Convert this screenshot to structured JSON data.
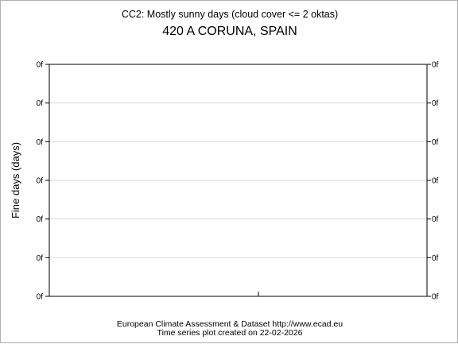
{
  "chart_data": {
    "type": "line",
    "title": "CC2: Mostly sunny days (cloud cover <= 2 oktas)",
    "subtitle": "420 A CORUNA, SPAIN",
    "xlabel": "",
    "ylabel": "Fine days (days)",
    "y_ticks": [
      "0f",
      "0f",
      "0f",
      "0f",
      "0f",
      "0f",
      "0f"
    ],
    "x_ticks": [],
    "series": [],
    "grid": true,
    "legend": "none"
  },
  "footer": {
    "line1": "European Climate Assessment & Dataset  http://www.ecad.eu",
    "line2": "Time series plot created on 22-02-2026"
  }
}
